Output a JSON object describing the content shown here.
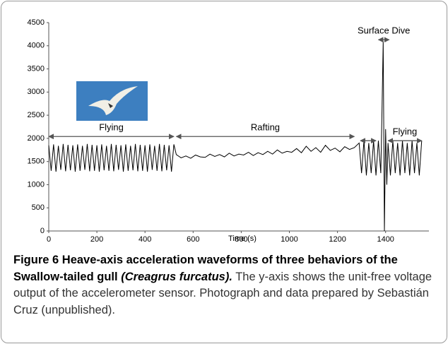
{
  "chart_data": {
    "type": "line",
    "x_label": "Time (s)",
    "xlim": [
      0,
      1580
    ],
    "xticks": [
      0,
      200,
      400,
      600,
      800,
      1000,
      1200,
      1400
    ],
    "ylim": [
      0,
      4500
    ],
    "yticks": [
      0,
      500,
      1000,
      1500,
      2000,
      2500,
      3000,
      3500,
      4000,
      4500
    ],
    "color": "#000000",
    "x": [
      0,
      10,
      20,
      30,
      40,
      50,
      60,
      70,
      80,
      90,
      100,
      110,
      120,
      130,
      140,
      150,
      160,
      170,
      180,
      190,
      200,
      210,
      220,
      230,
      240,
      250,
      260,
      270,
      280,
      290,
      300,
      310,
      320,
      330,
      340,
      350,
      360,
      370,
      380,
      390,
      400,
      410,
      420,
      430,
      440,
      450,
      460,
      470,
      480,
      490,
      500,
      510,
      520,
      530,
      550,
      570,
      590,
      610,
      630,
      650,
      670,
      690,
      710,
      730,
      750,
      770,
      790,
      810,
      830,
      850,
      870,
      890,
      910,
      930,
      950,
      970,
      990,
      1010,
      1030,
      1050,
      1070,
      1090,
      1110,
      1130,
      1150,
      1170,
      1190,
      1210,
      1230,
      1250,
      1270,
      1290,
      1300,
      1310,
      1320,
      1330,
      1340,
      1350,
      1360,
      1370,
      1380,
      1385,
      1390,
      1395,
      1400,
      1405,
      1410,
      1420,
      1430,
      1440,
      1450,
      1460,
      1470,
      1480,
      1490,
      1500,
      1510,
      1520,
      1530,
      1540,
      1550
    ],
    "values": [
      1850,
      1300,
      1870,
      1280,
      1840,
      1320,
      1880,
      1290,
      1860,
      1310,
      1850,
      1280,
      1870,
      1300,
      1840,
      1320,
      1880,
      1290,
      1860,
      1300,
      1850,
      1280,
      1870,
      1310,
      1840,
      1300,
      1880,
      1290,
      1860,
      1320,
      1850,
      1280,
      1870,
      1300,
      1840,
      1310,
      1880,
      1290,
      1860,
      1300,
      1850,
      1280,
      1870,
      1320,
      1840,
      1300,
      1880,
      1290,
      1860,
      1310,
      1850,
      1280,
      1870,
      1650,
      1580,
      1620,
      1570,
      1640,
      1600,
      1590,
      1660,
      1610,
      1650,
      1600,
      1680,
      1620,
      1660,
      1640,
      1700,
      1630,
      1690,
      1650,
      1720,
      1660,
      1750,
      1680,
      1720,
      1700,
      1780,
      1690,
      1830,
      1720,
      1800,
      1700,
      1850,
      1740,
      1790,
      1710,
      1820,
      1760,
      1800,
      1900,
      1250,
      1950,
      1200,
      1900,
      1250,
      1950,
      1200,
      1950,
      1250,
      2600,
      4100,
      0,
      2200,
      1000,
      1900,
      1200,
      1950,
      1250,
      1900,
      1200,
      1950,
      1250,
      1900,
      1200,
      1950,
      1250,
      1900,
      1200,
      1950
    ],
    "annotations": [
      {
        "text": "Flying",
        "x": [
          0,
          520
        ],
        "y": 2040
      },
      {
        "text": "Rafting",
        "x": [
          530,
          1270
        ],
        "y": 2040
      },
      {
        "x": [
          1295,
          1360
        ],
        "y": 1950
      },
      {
        "text": "Surface Dive",
        "x": [
          1370,
          1415
        ],
        "y": 4130
      },
      {
        "text": "Flying",
        "x": [
          1410,
          1550
        ],
        "y": 1950
      }
    ]
  },
  "caption": {
    "label": "Figure 6",
    "title": "Heave-axis acceleration waveforms of three behaviors of the Swallow-tailed gull",
    "species": "(Creagrus furcatus).",
    "text": "The y-axis shows the unit-free voltage output of the accelerometer sensor. Photograph and data prepared by Sebastián Cruz (unpublished)."
  }
}
